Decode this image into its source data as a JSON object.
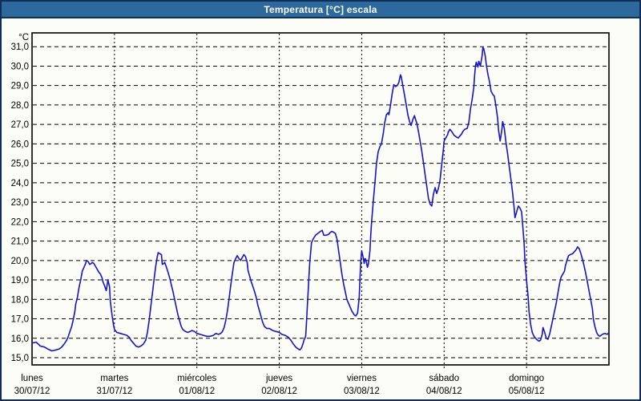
{
  "window": {
    "title": "Temperatura [°C] escala",
    "title_bar_color": "#2c699c",
    "border_color": "#0f2f58",
    "background": "#fdfdf8"
  },
  "chart_data": {
    "type": "line",
    "title": "Temperatura [°C] escala",
    "ylabel": "°C",
    "unit_label": "°C",
    "ylim": [
      15.0,
      31.0
    ],
    "y_tick_step": 1.0,
    "y_tick_labels": [
      "31,0",
      "30,0",
      "29,0",
      "28,0",
      "27,0",
      "26,0",
      "25,0",
      "24,0",
      "23,0",
      "22,0",
      "21,0",
      "20,0",
      "19,0",
      "18,0",
      "17,0",
      "16,0",
      "15,0"
    ],
    "xlim_days": [
      0,
      7
    ],
    "grid": "dashed horizontal per degree, dashed vertical per day",
    "legend_position": "none",
    "line_color": "#1414c8",
    "days": [
      {
        "name": "lunes",
        "date": "30/07/12"
      },
      {
        "name": "martes",
        "date": "31/07/12"
      },
      {
        "name": "miércoles",
        "date": "01/08/12"
      },
      {
        "name": "jueves",
        "date": "02/08/12"
      },
      {
        "name": "viernes",
        "date": "03/08/12"
      },
      {
        "name": "sábado",
        "date": "04/08/12"
      },
      {
        "name": "domingo",
        "date": "05/08/12"
      }
    ],
    "points_day_fraction_temp": [
      [
        0,
        15.75
      ],
      [
        0.05,
        15.8
      ],
      [
        0.1,
        15.6
      ],
      [
        0.15,
        15.55
      ],
      [
        0.19,
        15.45
      ],
      [
        0.24,
        15.35
      ],
      [
        0.29,
        15.4
      ],
      [
        0.33,
        15.45
      ],
      [
        0.36,
        15.55
      ],
      [
        0.39,
        15.7
      ],
      [
        0.42,
        15.9
      ],
      [
        0.44,
        16.1
      ],
      [
        0.46,
        16.35
      ],
      [
        0.48,
        16.6
      ],
      [
        0.5,
        16.95
      ],
      [
        0.52,
        17.4
      ],
      [
        0.53,
        17.75
      ],
      [
        0.55,
        18.1
      ],
      [
        0.57,
        18.6
      ],
      [
        0.59,
        19.0
      ],
      [
        0.61,
        19.45
      ],
      [
        0.63,
        19.65
      ],
      [
        0.65,
        19.85
      ],
      [
        0.66,
        20.0
      ],
      [
        0.68,
        19.95
      ],
      [
        0.7,
        19.8
      ],
      [
        0.72,
        19.85
      ],
      [
        0.73,
        19.9
      ],
      [
        0.75,
        19.85
      ],
      [
        0.77,
        19.7
      ],
      [
        0.79,
        19.55
      ],
      [
        0.81,
        19.4
      ],
      [
        0.83,
        19.3
      ],
      [
        0.85,
        19.1
      ],
      [
        0.86,
        18.9
      ],
      [
        0.88,
        18.7
      ],
      [
        0.9,
        18.45
      ],
      [
        0.91,
        18.7
      ],
      [
        0.92,
        19.0
      ],
      [
        0.94,
        18.65
      ],
      [
        0.95,
        17.9
      ],
      [
        0.97,
        17.2
      ],
      [
        0.99,
        16.65
      ],
      [
        1,
        16.45
      ],
      [
        1.03,
        16.3
      ],
      [
        1.07,
        16.25
      ],
      [
        1.11,
        16.2
      ],
      [
        1.15,
        16.15
      ],
      [
        1.18,
        16.05
      ],
      [
        1.2,
        15.9
      ],
      [
        1.23,
        15.75
      ],
      [
        1.26,
        15.6
      ],
      [
        1.29,
        15.55
      ],
      [
        1.32,
        15.6
      ],
      [
        1.35,
        15.7
      ],
      [
        1.38,
        15.9
      ],
      [
        1.4,
        16.3
      ],
      [
        1.42,
        16.9
      ],
      [
        1.44,
        17.6
      ],
      [
        1.46,
        18.3
      ],
      [
        1.48,
        19.0
      ],
      [
        1.5,
        19.7
      ],
      [
        1.52,
        20.2
      ],
      [
        1.53,
        20.4
      ],
      [
        1.55,
        20.35
      ],
      [
        1.57,
        20.3
      ],
      [
        1.58,
        19.8
      ],
      [
        1.6,
        19.85
      ],
      [
        1.61,
        19.9
      ],
      [
        1.63,
        19.65
      ],
      [
        1.65,
        19.4
      ],
      [
        1.67,
        19.1
      ],
      [
        1.69,
        18.75
      ],
      [
        1.71,
        18.4
      ],
      [
        1.73,
        18.0
      ],
      [
        1.75,
        17.6
      ],
      [
        1.77,
        17.2
      ],
      [
        1.79,
        16.9
      ],
      [
        1.81,
        16.6
      ],
      [
        1.83,
        16.45
      ],
      [
        1.86,
        16.35
      ],
      [
        1.89,
        16.3
      ],
      [
        1.92,
        16.35
      ],
      [
        1.94,
        16.4
      ],
      [
        1.97,
        16.35
      ],
      [
        2,
        16.25
      ],
      [
        2.04,
        16.2
      ],
      [
        2.08,
        16.15
      ],
      [
        2.12,
        16.1
      ],
      [
        2.16,
        16.1
      ],
      [
        2.2,
        16.15
      ],
      [
        2.23,
        16.25
      ],
      [
        2.26,
        16.2
      ],
      [
        2.29,
        16.25
      ],
      [
        2.31,
        16.35
      ],
      [
        2.33,
        16.55
      ],
      [
        2.35,
        16.9
      ],
      [
        2.37,
        17.4
      ],
      [
        2.39,
        18.0
      ],
      [
        2.41,
        18.7
      ],
      [
        2.43,
        19.3
      ],
      [
        2.45,
        19.9
      ],
      [
        2.47,
        20.1
      ],
      [
        2.49,
        20.25
      ],
      [
        2.51,
        20.1
      ],
      [
        2.53,
        20.0
      ],
      [
        2.55,
        20.15
      ],
      [
        2.57,
        20.3
      ],
      [
        2.59,
        20.2
      ],
      [
        2.61,
        19.9
      ],
      [
        2.62,
        19.5
      ],
      [
        2.64,
        19.2
      ],
      [
        2.66,
        18.9
      ],
      [
        2.68,
        18.65
      ],
      [
        2.7,
        18.4
      ],
      [
        2.72,
        18.1
      ],
      [
        2.74,
        17.7
      ],
      [
        2.76,
        17.4
      ],
      [
        2.78,
        17.1
      ],
      [
        2.8,
        16.8
      ],
      [
        2.82,
        16.6
      ],
      [
        2.85,
        16.5
      ],
      [
        2.88,
        16.5
      ],
      [
        2.92,
        16.4
      ],
      [
        2.96,
        16.35
      ],
      [
        3,
        16.3
      ],
      [
        3.03,
        16.2
      ],
      [
        3.07,
        16.15
      ],
      [
        3.11,
        16.05
      ],
      [
        3.14,
        15.9
      ],
      [
        3.17,
        15.7
      ],
      [
        3.2,
        15.55
      ],
      [
        3.23,
        15.45
      ],
      [
        3.25,
        15.4
      ],
      [
        3.27,
        15.5
      ],
      [
        3.29,
        15.75
      ],
      [
        3.3,
        15.9
      ],
      [
        3.32,
        16.1
      ],
      [
        3.33,
        16.8
      ],
      [
        3.34,
        17.6
      ],
      [
        3.35,
        18.4
      ],
      [
        3.36,
        19.2
      ],
      [
        3.37,
        19.9
      ],
      [
        3.38,
        20.4
      ],
      [
        3.39,
        20.9
      ],
      [
        3.41,
        21.1
      ],
      [
        3.44,
        21.3
      ],
      [
        3.47,
        21.4
      ],
      [
        3.5,
        21.5
      ],
      [
        3.52,
        21.55
      ],
      [
        3.54,
        21.3
      ],
      [
        3.57,
        21.3
      ],
      [
        3.6,
        21.35
      ],
      [
        3.62,
        21.45
      ],
      [
        3.64,
        21.5
      ],
      [
        3.66,
        21.45
      ],
      [
        3.68,
        21.4
      ],
      [
        3.7,
        21.1
      ],
      [
        3.72,
        20.5
      ],
      [
        3.74,
        19.9
      ],
      [
        3.76,
        19.3
      ],
      [
        3.78,
        18.8
      ],
      [
        3.8,
        18.4
      ],
      [
        3.82,
        18.0
      ],
      [
        3.85,
        17.7
      ],
      [
        3.88,
        17.4
      ],
      [
        3.91,
        17.2
      ],
      [
        3.93,
        17.15
      ],
      [
        3.95,
        17.3
      ],
      [
        3.97,
        18.1
      ],
      [
        3.98,
        19.2
      ],
      [
        3.99,
        20.0
      ],
      [
        4,
        20.5
      ],
      [
        4.01,
        20.3
      ],
      [
        4.02,
        20.1
      ],
      [
        4.03,
        19.85
      ],
      [
        4.04,
        20.1
      ],
      [
        4.05,
        20.05
      ],
      [
        4.07,
        19.65
      ],
      [
        4.08,
        19.8
      ],
      [
        4.1,
        20.5
      ],
      [
        4.11,
        21.3
      ],
      [
        4.12,
        22.0
      ],
      [
        4.14,
        23.0
      ],
      [
        4.16,
        24.0
      ],
      [
        4.18,
        25.0
      ],
      [
        4.2,
        25.6
      ],
      [
        4.22,
        25.85
      ],
      [
        4.24,
        26.0
      ],
      [
        4.26,
        26.5
      ],
      [
        4.28,
        27.1
      ],
      [
        4.3,
        27.5
      ],
      [
        4.32,
        27.6
      ],
      [
        4.33,
        27.5
      ],
      [
        4.35,
        28.0
      ],
      [
        4.37,
        28.6
      ],
      [
        4.39,
        29.05
      ],
      [
        4.41,
        28.95
      ],
      [
        4.43,
        29.0
      ],
      [
        4.45,
        29.15
      ],
      [
        4.47,
        29.55
      ],
      [
        4.48,
        29.45
      ],
      [
        4.5,
        28.95
      ],
      [
        4.52,
        28.5
      ],
      [
        4.54,
        28.0
      ],
      [
        4.56,
        27.5
      ],
      [
        4.58,
        27.15
      ],
      [
        4.6,
        26.95
      ],
      [
        4.62,
        27.25
      ],
      [
        4.64,
        27.45
      ],
      [
        4.65,
        27.3
      ],
      [
        4.67,
        27.05
      ],
      [
        4.69,
        26.6
      ],
      [
        4.71,
        26.1
      ],
      [
        4.73,
        25.6
      ],
      [
        4.75,
        25.0
      ],
      [
        4.77,
        24.4
      ],
      [
        4.79,
        23.8
      ],
      [
        4.81,
        23.2
      ],
      [
        4.83,
        22.9
      ],
      [
        4.85,
        22.8
      ],
      [
        4.87,
        23.4
      ],
      [
        4.89,
        23.75
      ],
      [
        4.91,
        23.45
      ],
      [
        4.93,
        23.7
      ],
      [
        4.95,
        24.1
      ],
      [
        4.97,
        24.9
      ],
      [
        4.99,
        25.7
      ],
      [
        5,
        26.15
      ],
      [
        5.02,
        26.3
      ],
      [
        5.04,
        26.45
      ],
      [
        5.05,
        26.6
      ],
      [
        5.07,
        26.75
      ],
      [
        5.09,
        26.65
      ],
      [
        5.12,
        26.45
      ],
      [
        5.15,
        26.35
      ],
      [
        5.17,
        26.3
      ],
      [
        5.19,
        26.4
      ],
      [
        5.21,
        26.5
      ],
      [
        5.23,
        26.65
      ],
      [
        5.25,
        26.75
      ],
      [
        5.28,
        26.8
      ],
      [
        5.3,
        27.1
      ],
      [
        5.32,
        27.8
      ],
      [
        5.34,
        28.3
      ],
      [
        5.36,
        28.9
      ],
      [
        5.37,
        29.5
      ],
      [
        5.38,
        30.0
      ],
      [
        5.39,
        30.2
      ],
      [
        5.41,
        29.95
      ],
      [
        5.42,
        30.25
      ],
      [
        5.44,
        30.0
      ],
      [
        5.46,
        30.5
      ],
      [
        5.47,
        30.95
      ],
      [
        5.48,
        30.9
      ],
      [
        5.5,
        30.5
      ],
      [
        5.51,
        30.15
      ],
      [
        5.53,
        29.6
      ],
      [
        5.55,
        29.2
      ],
      [
        5.57,
        28.7
      ],
      [
        5.59,
        28.55
      ],
      [
        5.61,
        28.45
      ],
      [
        5.63,
        27.9
      ],
      [
        5.65,
        27.3
      ],
      [
        5.66,
        26.7
      ],
      [
        5.68,
        26.15
      ],
      [
        5.7,
        26.7
      ],
      [
        5.71,
        27.15
      ],
      [
        5.73,
        26.8
      ],
      [
        5.75,
        26.1
      ],
      [
        5.77,
        25.5
      ],
      [
        5.79,
        24.85
      ],
      [
        5.81,
        24.2
      ],
      [
        5.83,
        23.5
      ],
      [
        5.85,
        22.7
      ],
      [
        5.86,
        22.2
      ],
      [
        5.88,
        22.5
      ],
      [
        5.9,
        22.8
      ],
      [
        5.92,
        22.7
      ],
      [
        5.94,
        22.5
      ],
      [
        5.95,
        22.0
      ],
      [
        5.97,
        20.9
      ],
      [
        5.98,
        20.0
      ],
      [
        6,
        19.0
      ],
      [
        6.02,
        18.1
      ],
      [
        6.03,
        17.4
      ],
      [
        6.05,
        16.7
      ],
      [
        6.07,
        16.3
      ],
      [
        6.09,
        16.1
      ],
      [
        6.12,
        15.95
      ],
      [
        6.15,
        15.85
      ],
      [
        6.17,
        15.9
      ],
      [
        6.19,
        16.2
      ],
      [
        6.2,
        16.55
      ],
      [
        6.22,
        16.3
      ],
      [
        6.24,
        16.0
      ],
      [
        6.26,
        15.95
      ],
      [
        6.28,
        16.2
      ],
      [
        6.3,
        16.6
      ],
      [
        6.32,
        17.0
      ],
      [
        6.34,
        17.4
      ],
      [
        6.36,
        17.8
      ],
      [
        6.38,
        18.3
      ],
      [
        6.4,
        18.8
      ],
      [
        6.42,
        19.15
      ],
      [
        6.44,
        19.3
      ],
      [
        6.46,
        19.45
      ],
      [
        6.47,
        19.7
      ],
      [
        6.49,
        20.0
      ],
      [
        6.51,
        20.25
      ],
      [
        6.53,
        20.3
      ],
      [
        6.56,
        20.35
      ],
      [
        6.58,
        20.45
      ],
      [
        6.6,
        20.55
      ],
      [
        6.62,
        20.7
      ],
      [
        6.64,
        20.6
      ],
      [
        6.66,
        20.35
      ],
      [
        6.68,
        20.05
      ],
      [
        6.7,
        19.7
      ],
      [
        6.72,
        19.3
      ],
      [
        6.74,
        18.85
      ],
      [
        6.76,
        18.4
      ],
      [
        6.78,
        17.95
      ],
      [
        6.8,
        17.5
      ],
      [
        6.81,
        17.0
      ],
      [
        6.83,
        16.6
      ],
      [
        6.85,
        16.3
      ],
      [
        6.87,
        16.15
      ],
      [
        6.89,
        16.1
      ],
      [
        6.92,
        16.2
      ],
      [
        6.95,
        16.25
      ],
      [
        6.98,
        16.2
      ],
      [
        7,
        16.3
      ]
    ]
  }
}
